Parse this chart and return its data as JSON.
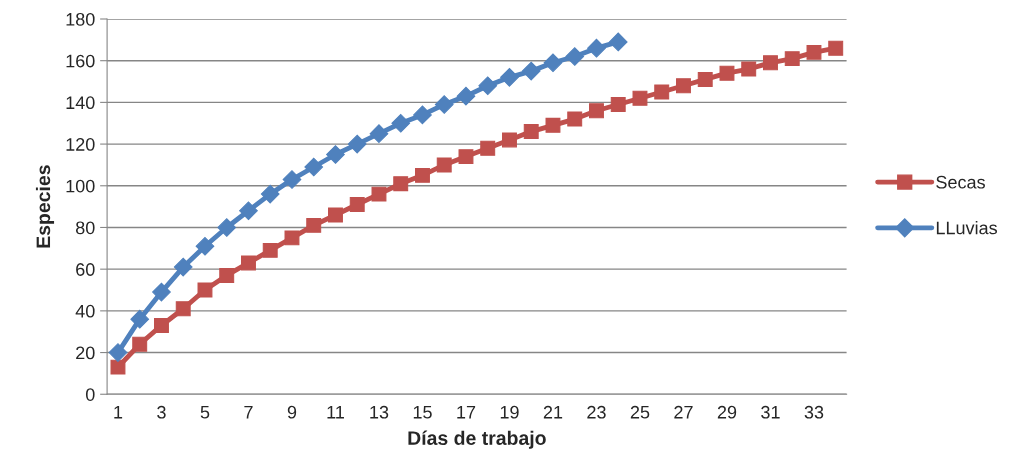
{
  "chart_data": {
    "type": "line",
    "xlabel": "Días de trabajo",
    "ylabel": "Especies",
    "categories": [
      "1",
      null,
      "3",
      null,
      "5",
      null,
      "7",
      null,
      "9",
      null,
      "11",
      null,
      "13",
      null,
      "15",
      null,
      "17",
      null,
      "19",
      null,
      "21",
      null,
      "23",
      null,
      "25",
      null,
      "27",
      null,
      "29",
      null,
      "31",
      null,
      "33",
      null
    ],
    "series": [
      {
        "name": "Secas",
        "color": "#c0504d",
        "marker": "square",
        "values": [
          13,
          24,
          33,
          41,
          50,
          57,
          63,
          69,
          75,
          81,
          86,
          91,
          96,
          101,
          105,
          110,
          114,
          118,
          122,
          126,
          129,
          132,
          136,
          139,
          142,
          145,
          148,
          151,
          154,
          156,
          159,
          161,
          164,
          166
        ]
      },
      {
        "name": "LLuvias",
        "color": "#4f81bd",
        "marker": "diamond",
        "values": [
          20,
          36,
          49,
          61,
          71,
          80,
          88,
          96,
          103,
          109,
          115,
          120,
          125,
          130,
          134,
          139,
          143,
          148,
          152,
          155,
          159,
          162,
          166,
          169,
          null,
          null,
          null,
          null,
          null,
          null,
          null,
          null,
          null,
          null
        ]
      }
    ],
    "ylim": [
      0,
      180
    ],
    "yticks": [
      0,
      20,
      40,
      60,
      80,
      100,
      120,
      140,
      160,
      180
    ],
    "grid": "y",
    "legend": "right",
    "line_style": "solid"
  }
}
